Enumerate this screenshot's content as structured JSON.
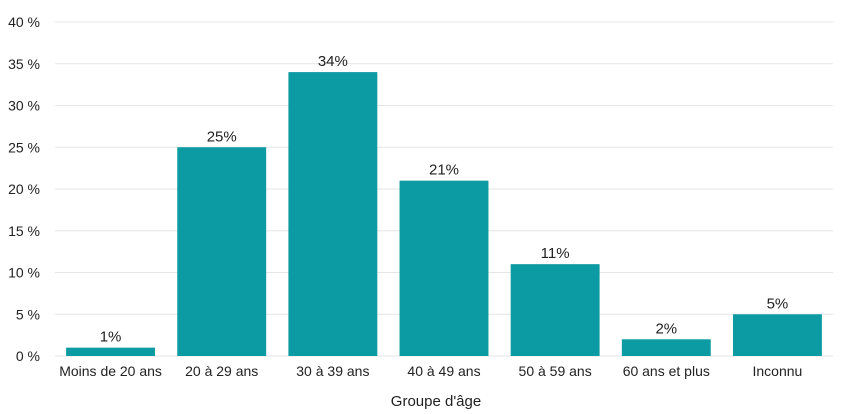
{
  "chart_data": {
    "type": "bar",
    "title": "",
    "xlabel": "Groupe d'âge",
    "ylabel": "",
    "categories": [
      "Moins de 20 ans",
      "20 à 29 ans",
      "30 à 39 ans",
      "40 à 49 ans",
      "50 à 59 ans",
      "60 ans et plus",
      "Inconnu"
    ],
    "values": [
      1,
      25,
      34,
      21,
      11,
      2,
      5
    ],
    "data_labels": [
      "1%",
      "25%",
      "34%",
      "21%",
      "11%",
      "2%",
      "5%"
    ],
    "ylim": [
      0,
      40
    ],
    "yticks": [
      0,
      5,
      10,
      15,
      20,
      25,
      30,
      35,
      40
    ],
    "ytick_labels": [
      "0 %",
      "5 %",
      "10 %",
      "15 %",
      "20 %",
      "25 %",
      "30 %",
      "35 %",
      "40 %"
    ],
    "grid": true,
    "legend": "none",
    "bar_color": "#0c9ba3"
  }
}
